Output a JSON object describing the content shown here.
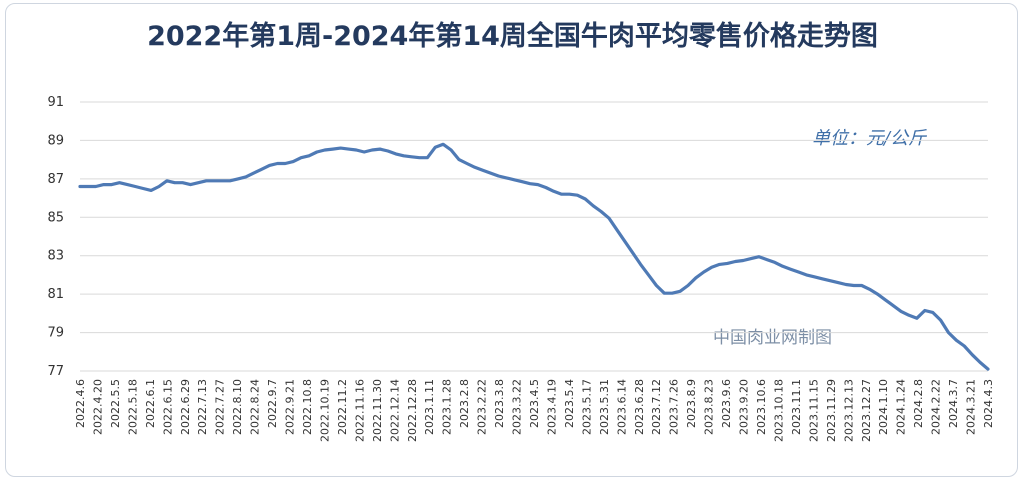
{
  "chart_data": {
    "type": "line",
    "title": "2022年第1周-2024年第14周全国牛肉平均零售价格走势图",
    "unit_label": "单位：元/公斤",
    "source_label": "中国肉业网制图",
    "ylim": [
      77,
      91
    ],
    "yticks": [
      77,
      79,
      81,
      83,
      85,
      87,
      89,
      91
    ],
    "grid": true,
    "line_color": "#4f7ab5",
    "x_tick_labels": [
      "2022.4.6",
      "2022.4.20",
      "2022.5.5",
      "2022.5.18",
      "2022.6.1",
      "2022.6.15",
      "2022.6.29",
      "2022.7.13",
      "2022.7.27",
      "2022.8.10",
      "2022.8.24",
      "2022.9.7",
      "2022.9.21",
      "2022.10.8",
      "2022.10.19",
      "2022.11.2",
      "2022.11.16",
      "2022.11.30",
      "2022.12.14",
      "2022.12.28",
      "2023.1.11",
      "2023.1.28",
      "2023.2.8",
      "2023.2.22",
      "2023.3.8",
      "2023.3.22",
      "2023.4.5",
      "2023.4.19",
      "2023.5.4",
      "2023.5.17",
      "2023.5.31",
      "2023.6.14",
      "2023.6.28",
      "2023.7.12",
      "2023.7.26",
      "2023.8.9",
      "2023.8.23",
      "2023.9.6",
      "2023.9.20",
      "2023.10.6",
      "2023.10.18",
      "2023.11.1",
      "2023.11.15",
      "2023.11.29",
      "2023.12.13",
      "2023.12.27",
      "2024.1.10",
      "2024.1.24",
      "2024.2.8",
      "2024.2.22",
      "2024.3.7",
      "2024.3.21",
      "2024.4.3"
    ],
    "values": [
      86.6,
      86.6,
      86.6,
      86.7,
      86.7,
      86.8,
      86.7,
      86.6,
      86.5,
      86.4,
      86.6,
      86.9,
      86.8,
      86.8,
      86.7,
      86.8,
      86.9,
      86.9,
      86.9,
      86.9,
      87.0,
      87.1,
      87.3,
      87.5,
      87.7,
      87.8,
      87.8,
      87.9,
      88.1,
      88.2,
      88.4,
      88.5,
      88.55,
      88.6,
      88.55,
      88.5,
      88.4,
      88.5,
      88.55,
      88.45,
      88.3,
      88.2,
      88.15,
      88.1,
      88.1,
      88.65,
      88.8,
      88.5,
      88.0,
      87.8,
      87.6,
      87.45,
      87.3,
      87.15,
      87.05,
      86.95,
      86.85,
      86.75,
      86.7,
      86.55,
      86.35,
      86.2,
      86.2,
      86.15,
      85.95,
      85.6,
      85.3,
      84.95,
      84.35,
      83.75,
      83.15,
      82.55,
      82.0,
      81.45,
      81.05,
      81.05,
      81.15,
      81.45,
      81.85,
      82.15,
      82.4,
      82.55,
      82.6,
      82.7,
      82.75,
      82.85,
      82.95,
      82.8,
      82.65,
      82.45,
      82.3,
      82.15,
      82.0,
      81.9,
      81.8,
      81.7,
      81.6,
      81.5,
      81.45,
      81.45,
      81.25,
      81.0,
      80.7,
      80.4,
      80.1,
      79.9,
      79.75,
      80.15,
      80.05,
      79.65,
      79.0,
      78.6,
      78.3,
      77.85,
      77.45,
      77.1
    ]
  }
}
